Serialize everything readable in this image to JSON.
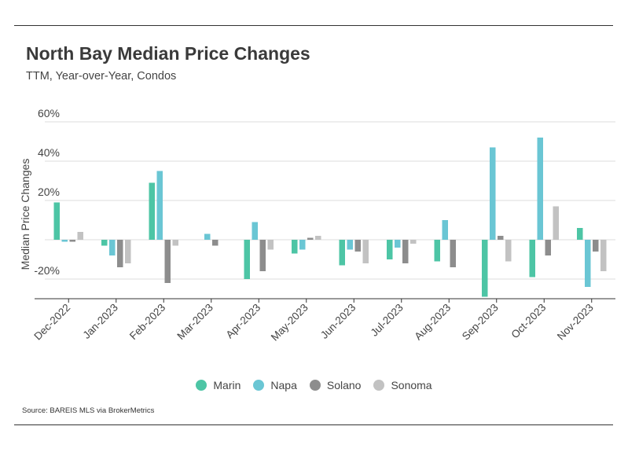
{
  "header": {
    "title": "North Bay Median Price Changes",
    "subtitle": "TTM, Year-over-Year, Condos"
  },
  "footer": {
    "source": "Source:  BAREIS MLS via BrokerMetrics"
  },
  "colors": {
    "Marin": "#4dc5a5",
    "Napa": "#6ac6d4",
    "Solano": "#8d8d8d",
    "Sonoma": "#c2c2c2",
    "grid": "#dcdcdc",
    "axis": "#333333"
  },
  "chart_data": {
    "type": "bar",
    "title": "North Bay Median Price Changes",
    "subtitle": "TTM, Year-over-Year, Condos",
    "xlabel": "",
    "ylabel": "Median Price Changes",
    "ylim": [
      -30,
      60
    ],
    "yticks": [
      60,
      40,
      20,
      0,
      -20
    ],
    "ytick_labels": [
      "60%",
      "40%",
      "20%",
      "0",
      "-20%"
    ],
    "grid": true,
    "legend": "bottom-center",
    "categories": [
      "Dec-2022",
      "Jan-2023",
      "Feb-2023",
      "Mar-2023",
      "Apr-2023",
      "May-2023",
      "Jun-2023",
      "Jul-2023",
      "Aug-2023",
      "Sep-2023",
      "Oct-2023",
      "Nov-2023"
    ],
    "series": [
      {
        "name": "Marin",
        "values": [
          19,
          -3,
          29,
          0,
          -20,
          -7,
          -13,
          -10,
          -11,
          -29,
          -19,
          6
        ]
      },
      {
        "name": "Napa",
        "values": [
          -1,
          -8,
          35,
          3,
          9,
          -5,
          -5,
          -4,
          10,
          47,
          52,
          -24
        ]
      },
      {
        "name": "Solano",
        "values": [
          -1,
          -14,
          -22,
          -3,
          -16,
          1,
          -6,
          -12,
          -14,
          2,
          -8,
          -6
        ]
      },
      {
        "name": "Sonoma",
        "values": [
          4,
          -12,
          -3,
          0,
          -5,
          2,
          -12,
          -2,
          0,
          -11,
          17,
          -16
        ]
      }
    ]
  }
}
